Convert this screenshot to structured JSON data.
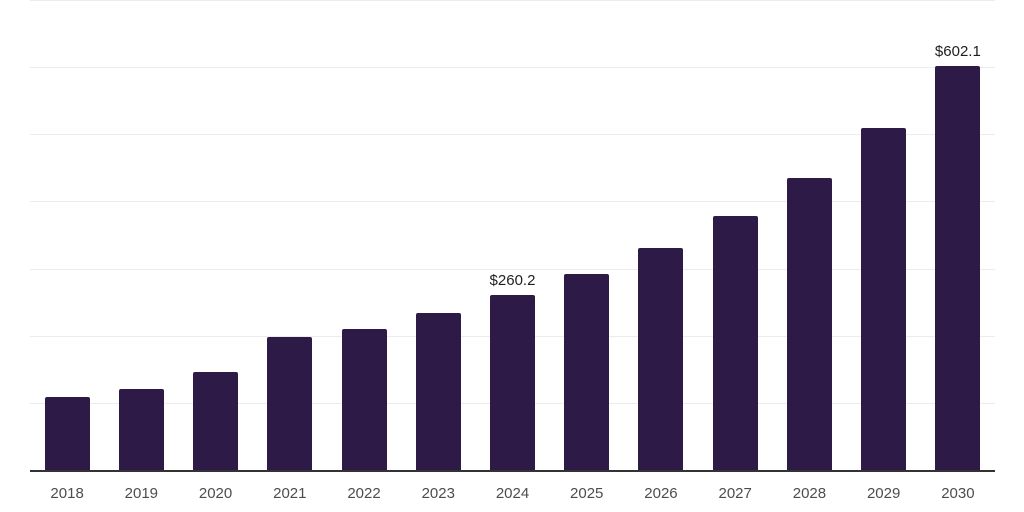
{
  "chart_data": {
    "type": "bar",
    "title": "",
    "xlabel": "",
    "ylabel": "",
    "categories": [
      "2018",
      "2019",
      "2020",
      "2021",
      "2022",
      "2023",
      "2024",
      "2025",
      "2026",
      "2027",
      "2028",
      "2029",
      "2030"
    ],
    "values": [
      108.8,
      120.7,
      146.0,
      198.2,
      210.1,
      234.0,
      260.2,
      292.1,
      330.8,
      378.5,
      435.2,
      509.7,
      602.1
    ],
    "data_labels": {
      "2024": "$260.2",
      "2030": "$602.1"
    },
    "ylim": [
      0,
      700
    ],
    "gridline_values": [
      100,
      200,
      300,
      400,
      500,
      600,
      700
    ],
    "grid": "horizontal",
    "legend_position": "none",
    "colors": {
      "bar": "#2e1a47",
      "axis_line": "#333333",
      "gridline": "#ececec",
      "tick_label": "#4d4d4d",
      "data_label": "#1f1f1f",
      "background": "#ffffff"
    }
  }
}
